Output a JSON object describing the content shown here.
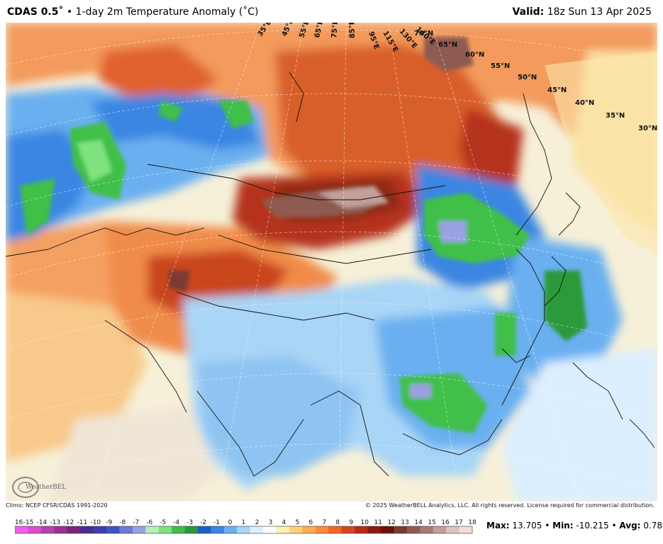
{
  "header": {
    "product": "CDAS 0.5˚",
    "separator": " • ",
    "title": "1-day 2m Temperature Anomaly (˚C)",
    "valid_label": "Valid:",
    "valid_value": "18z Sun 13 Apr 2025"
  },
  "footer": {
    "climo": "Climo: NCEP CFSR/CDAS 1991-2020",
    "copyright": "© 2025 WeatherBELL Analytics, LLC. All rights reserved. License required for commercial distribution."
  },
  "logo": {
    "text": "WeatherBELL"
  },
  "stats": {
    "max_label": "Max:",
    "max_value": "13.705",
    "min_label": "Min:",
    "min_value": "-10.215",
    "avg_label": "Avg:",
    "avg_value": "0.782",
    "sep": " • "
  },
  "latitude_labels": [
    "65°N",
    "60°N",
    "55°N",
    "50°N",
    "45°N",
    "40°N",
    "35°N",
    "30°N"
  ],
  "longitude_labels": [
    "35°E",
    "45°E",
    "55°E",
    "65°E",
    "75°E",
    "85°E",
    "95°E",
    "115°E",
    "130°E",
    "140°E",
    "70°N"
  ],
  "legend": {
    "ticks": [
      "-16",
      "-15",
      "-14",
      "-13",
      "-12",
      "-11",
      "-10",
      "-9",
      "-8",
      "-7",
      "-6",
      "-5",
      "-4",
      "-3",
      "-2",
      "-1",
      "0",
      "1",
      "2",
      "3",
      "4",
      "5",
      "6",
      "7",
      "8",
      "9",
      "10",
      "11",
      "12",
      "13",
      "14",
      "15",
      "16",
      "17",
      "18"
    ],
    "colors": [
      "#f35cf0",
      "#d94ecf",
      "#b83fb0",
      "#98318f",
      "#7a2578",
      "#4b2b90",
      "#3c3fae",
      "#3d55c5",
      "#6d7bd6",
      "#9aa0e2",
      "#b8f0b8",
      "#7ee27e",
      "#3fbf4a",
      "#2a9a3a",
      "#1b5fc5",
      "#3a86e2",
      "#6bb0f0",
      "#a9d5f6",
      "#dcefff",
      "#ffffff",
      "#fff2b0",
      "#ffd27a",
      "#ffad55",
      "#ff8a3a",
      "#f2652b",
      "#d7461f",
      "#b52d14",
      "#8e1b0c",
      "#6a1208",
      "#7b3a30",
      "#8f5a50",
      "#a77b72",
      "#c29f98",
      "#dcc3be",
      "#f0ded8"
    ]
  }
}
